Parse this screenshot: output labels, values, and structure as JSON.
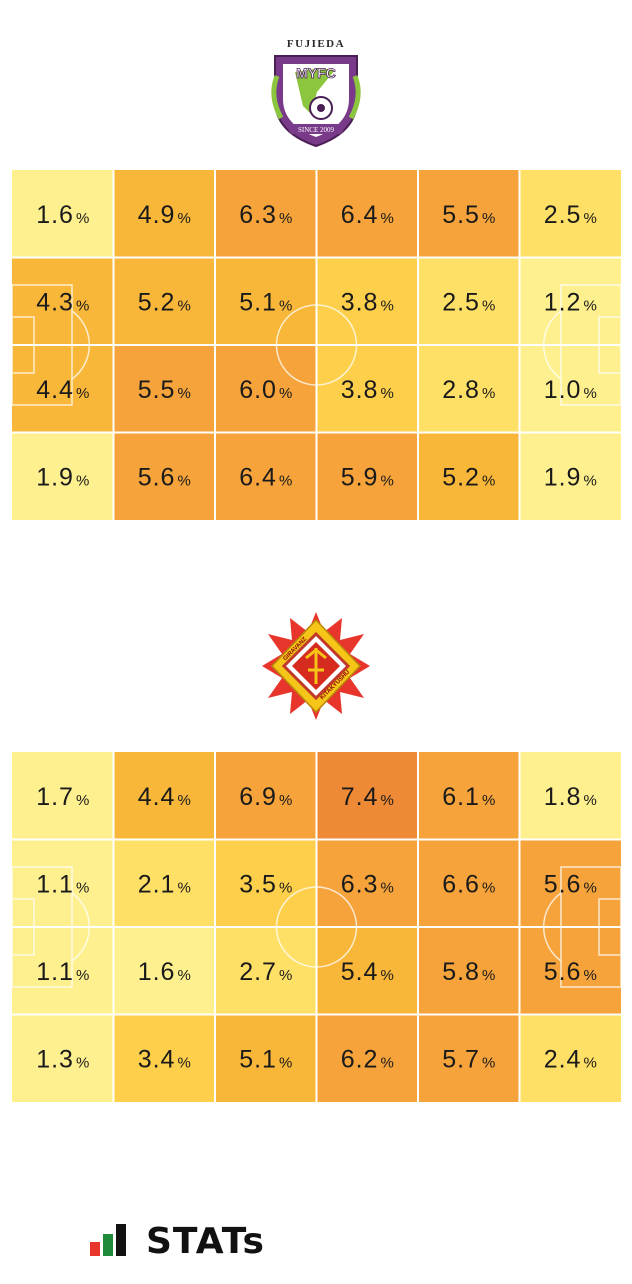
{
  "colors": {
    "scale": [
      "#fff08f",
      "#ffe066",
      "#fdcf4a",
      "#f9b73a",
      "#f5a33a",
      "#ee8a35"
    ],
    "line": "#ffffff",
    "text": "#1a1a1a"
  },
  "home_team": {
    "crest": {
      "top_text": "FUJIEDA",
      "mid_text": "MYFC",
      "bottom_text": "SINCE 2009"
    }
  },
  "away_team": {
    "crest": {
      "text_left": "GIRAVANZ",
      "text_right": "KITAKYUSHU"
    }
  },
  "chart_data": [
    {
      "type": "heatmap",
      "rows": 4,
      "cols": 6,
      "unit": "%",
      "values": [
        [
          1.6,
          4.9,
          6.3,
          6.4,
          5.5,
          2.5
        ],
        [
          4.3,
          5.2,
          5.1,
          3.8,
          2.5,
          1.2
        ],
        [
          4.4,
          5.5,
          6.0,
          3.8,
          2.8,
          1.0
        ],
        [
          1.9,
          5.6,
          6.4,
          5.9,
          5.2,
          1.9
        ]
      ],
      "labels": [
        [
          "1.6",
          "4.9",
          "6.3",
          "6.4",
          "5.5",
          "2.5"
        ],
        [
          "4.3",
          "5.2",
          "5.1",
          "3.8",
          "2.5",
          "1.2"
        ],
        [
          "4.4",
          "5.5",
          "6.0",
          "3.8",
          "2.8",
          "1.0"
        ],
        [
          "1.9",
          "5.6",
          "6.4",
          "5.9",
          "5.2",
          "1.9"
        ]
      ]
    },
    {
      "type": "heatmap",
      "rows": 4,
      "cols": 6,
      "unit": "%",
      "values": [
        [
          1.7,
          4.4,
          6.9,
          7.4,
          6.1,
          1.8
        ],
        [
          1.1,
          2.1,
          3.5,
          6.3,
          6.6,
          5.6
        ],
        [
          1.1,
          1.6,
          2.7,
          5.4,
          5.8,
          5.6
        ],
        [
          1.3,
          3.4,
          5.1,
          6.2,
          5.7,
          2.4
        ]
      ],
      "labels": [
        [
          "1.7",
          "4.4",
          "6.9",
          "7.4",
          "6.1",
          "1.8"
        ],
        [
          "1.1",
          "2.1",
          "3.5",
          "6.3",
          "6.6",
          "5.6"
        ],
        [
          "1.1",
          "1.6",
          "2.7",
          "5.4",
          "5.8",
          "5.6"
        ],
        [
          "1.3",
          "3.4",
          "5.1",
          "6.2",
          "5.7",
          "2.4"
        ]
      ]
    }
  ],
  "footer": {
    "brand": "STATs"
  }
}
